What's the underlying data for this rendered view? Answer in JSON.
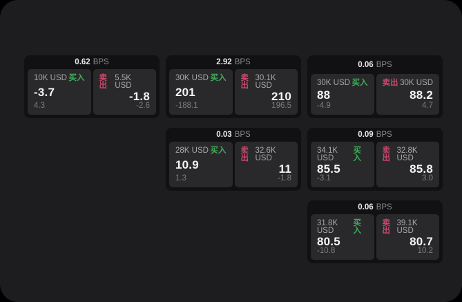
{
  "labels": {
    "bps": "BPS",
    "buy": "买入",
    "sell": "卖出"
  },
  "colors": {
    "page_bg": "#000000",
    "panel_bg": "#1d1d1f",
    "card_bg": "#111113",
    "tile_bg": "#29292b",
    "buy_green": "#3fae5a",
    "sell_red": "#c9476b",
    "value_white": "#f4f4f6",
    "muted_gray": "#7d7d81"
  },
  "cards": [
    {
      "bps": "0.62",
      "buy": {
        "amount": "10K USD",
        "value": "-3.7",
        "delta": "4.3"
      },
      "sell": {
        "amount": "5.5K USD",
        "value": "-1.8",
        "delta": "-2.6"
      }
    },
    {
      "bps": "2.92",
      "buy": {
        "amount": "30K USD",
        "value": "201",
        "delta": "-188.1"
      },
      "sell": {
        "amount": "30.1K USD",
        "value": "210",
        "delta": "196.5"
      }
    },
    {
      "bps": "0.06",
      "buy": {
        "amount": "30K USD",
        "value": "88",
        "delta": "-4.9"
      },
      "sell": {
        "amount": "30K USD",
        "value": "88.2",
        "delta": "4.7"
      }
    },
    {
      "bps": "0.03",
      "buy": {
        "amount": "28K USD",
        "value": "10.9",
        "delta": "1.3"
      },
      "sell": {
        "amount": "32.6K USD",
        "value": "11",
        "delta": "-1.8"
      }
    },
    {
      "bps": "0.09",
      "buy": {
        "amount": "34.1K USD",
        "value": "85.5",
        "delta": "-3.1"
      },
      "sell": {
        "amount": "32.8K USD",
        "value": "85.8",
        "delta": "3.0"
      }
    },
    {
      "bps": "0.06",
      "buy": {
        "amount": "31.8K USD",
        "value": "80.5",
        "delta": "-10.8"
      },
      "sell": {
        "amount": "39.1K USD",
        "value": "80.7",
        "delta": "10.2"
      }
    }
  ]
}
